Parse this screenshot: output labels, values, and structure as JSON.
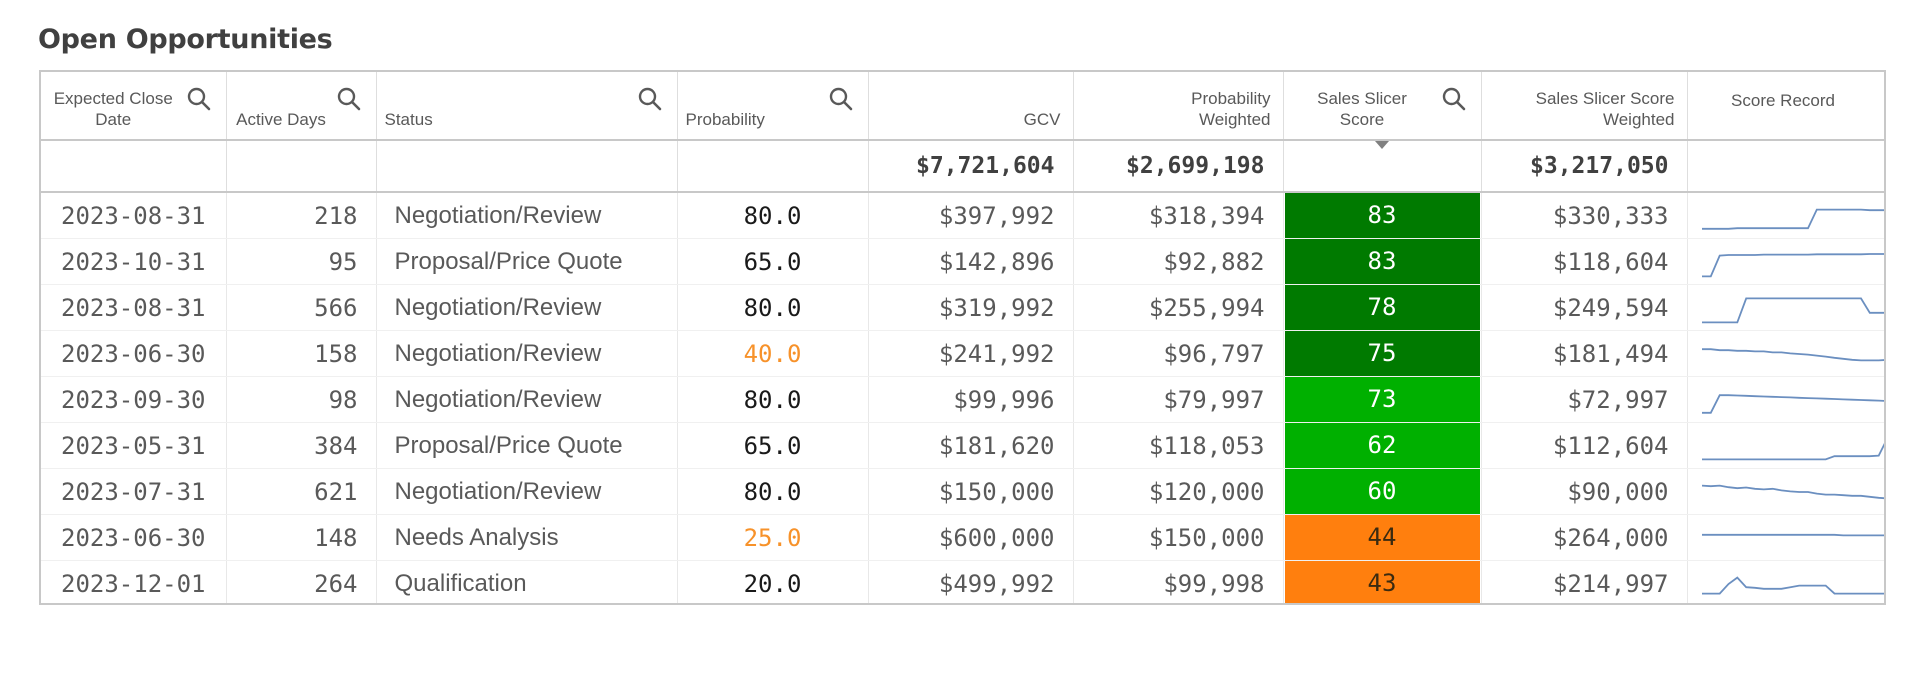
{
  "title": "Open Opportunities",
  "columns": [
    {
      "label": "Expected Close Date",
      "search": true
    },
    {
      "label": "Active Days",
      "search": true
    },
    {
      "label": "Status",
      "search": true
    },
    {
      "label": "Probability",
      "search": true
    },
    {
      "label": "GCV",
      "search": false
    },
    {
      "label": "Probability Weighted",
      "search": false
    },
    {
      "label": "Sales Slicer Score",
      "search": true
    },
    {
      "label": "Sales Slicer Score Weighted",
      "search": false
    },
    {
      "label": "Score Record",
      "search": false
    }
  ],
  "totals": {
    "gcv": "$7,721,604",
    "prob_weighted": "$2,699,198",
    "score_weighted": "$3,217,050"
  },
  "colors": {
    "score_dark_green": "#007a00",
    "score_green": "#00b000",
    "score_orange": "#ff7f0e",
    "probability_low": "#f7922a",
    "sparkline": "#6b8fc0"
  },
  "rows": [
    {
      "date": "2023-08-31",
      "days": "218",
      "status": "Negotiation/Review",
      "probability": "80.0",
      "prob_low": false,
      "gcv": "$397,992",
      "prob_weighted": "$318,394",
      "score": "83",
      "score_level": "dark",
      "score_weighted": "$330,333",
      "record": [
        0.9,
        0.9,
        0.9,
        0.9,
        0.88,
        0.88,
        0.88,
        0.88,
        0.88,
        0.88,
        0.88,
        0.88,
        0.88,
        0.3,
        0.3,
        0.3,
        0.3,
        0.3,
        0.3,
        0.32,
        0.32,
        0.32,
        0.32,
        0.32,
        0.32
      ]
    },
    {
      "date": "2023-10-31",
      "days": "95",
      "status": "Proposal/Price Quote",
      "probability": "65.0",
      "prob_low": false,
      "gcv": "$142,896",
      "prob_weighted": "$92,882",
      "score": "83",
      "score_level": "dark",
      "score_weighted": "$118,604",
      "record": [
        0.95,
        0.95,
        0.3,
        0.28,
        0.28,
        0.28,
        0.28,
        0.27,
        0.27,
        0.27,
        0.27,
        0.27,
        0.27,
        0.26,
        0.26,
        0.26,
        0.26,
        0.26,
        0.26,
        0.25,
        0.25,
        0.25,
        0.25,
        0.25,
        0.25
      ]
    },
    {
      "date": "2023-08-31",
      "days": "566",
      "status": "Negotiation/Review",
      "probability": "80.0",
      "prob_low": false,
      "gcv": "$319,992",
      "prob_weighted": "$255,994",
      "score": "78",
      "score_level": "dark",
      "score_weighted": "$249,594",
      "record": [
        0.95,
        0.95,
        0.95,
        0.95,
        0.95,
        0.2,
        0.2,
        0.2,
        0.2,
        0.2,
        0.2,
        0.2,
        0.2,
        0.2,
        0.2,
        0.2,
        0.2,
        0.2,
        0.2,
        0.65,
        0.65,
        0.65,
        0.65,
        0.65,
        0.95
      ]
    },
    {
      "date": "2023-06-30",
      "days": "158",
      "status": "Negotiation/Review",
      "probability": "40.0",
      "prob_low": true,
      "gcv": "$241,992",
      "prob_weighted": "$96,797",
      "score": "75",
      "score_level": "dark",
      "score_weighted": "$181,494",
      "record": [
        0.35,
        0.35,
        0.38,
        0.38,
        0.4,
        0.4,
        0.42,
        0.42,
        0.45,
        0.45,
        0.48,
        0.5,
        0.52,
        0.55,
        0.58,
        0.62,
        0.65,
        0.68,
        0.7,
        0.7,
        0.7,
        0.68,
        0.3,
        0.3,
        0.3
      ]
    },
    {
      "date": "2023-09-30",
      "days": "98",
      "status": "Negotiation/Review",
      "probability": "80.0",
      "prob_low": false,
      "gcv": "$99,996",
      "prob_weighted": "$79,997",
      "score": "73",
      "score_level": "green",
      "score_weighted": "$72,997",
      "record": [
        0.9,
        0.9,
        0.35,
        0.35,
        0.36,
        0.37,
        0.38,
        0.39,
        0.4,
        0.41,
        0.42,
        0.43,
        0.44,
        0.45,
        0.46,
        0.47,
        0.48,
        0.49,
        0.5,
        0.51,
        0.52,
        0.53,
        0.54,
        0.55,
        0.56
      ]
    },
    {
      "date": "2023-05-31",
      "days": "384",
      "status": "Proposal/Price Quote",
      "probability": "65.0",
      "prob_low": false,
      "gcv": "$181,620",
      "prob_weighted": "$118,053",
      "score": "62",
      "score_level": "green",
      "score_weighted": "$112,604",
      "record": [
        0.92,
        0.92,
        0.92,
        0.92,
        0.92,
        0.92,
        0.92,
        0.92,
        0.92,
        0.92,
        0.92,
        0.92,
        0.92,
        0.92,
        0.92,
        0.82,
        0.82,
        0.82,
        0.82,
        0.82,
        0.8,
        0.25,
        0.25,
        0.25,
        0.25
      ]
    },
    {
      "date": "2023-07-31",
      "days": "621",
      "status": "Negotiation/Review",
      "probability": "80.0",
      "prob_low": false,
      "gcv": "$150,000",
      "prob_weighted": "$120,000",
      "score": "60",
      "score_level": "green",
      "score_weighted": "$90,000",
      "record": [
        0.3,
        0.32,
        0.3,
        0.35,
        0.38,
        0.36,
        0.4,
        0.42,
        0.4,
        0.45,
        0.48,
        0.5,
        0.5,
        0.55,
        0.58,
        0.58,
        0.6,
        0.62,
        0.62,
        0.65,
        0.68,
        0.7,
        0.72,
        0.72,
        0.75
      ]
    },
    {
      "date": "2023-06-30",
      "days": "148",
      "status": "Needs Analysis",
      "probability": "25.0",
      "prob_low": true,
      "gcv": "$600,000",
      "prob_weighted": "$150,000",
      "score": "44",
      "score_level": "orange",
      "score_weighted": "$264,000",
      "record": [
        0.4,
        0.4,
        0.4,
        0.4,
        0.4,
        0.4,
        0.4,
        0.4,
        0.4,
        0.4,
        0.4,
        0.4,
        0.4,
        0.4,
        0.4,
        0.4,
        0.42,
        0.42,
        0.42,
        0.42,
        0.42,
        0.42,
        0.42,
        0.42,
        0.42
      ]
    },
    {
      "date": "2023-12-01",
      "days": "264",
      "status": "Qualification",
      "probability": "20.0",
      "prob_low": false,
      "gcv": "$499,992",
      "prob_weighted": "$99,998",
      "score": "43",
      "score_level": "orange",
      "score_weighted": "$214,997",
      "record": [
        0.8,
        0.8,
        0.8,
        0.5,
        0.3,
        0.6,
        0.62,
        0.65,
        0.65,
        0.65,
        0.6,
        0.55,
        0.55,
        0.55,
        0.55,
        0.8,
        0.8,
        0.8,
        0.8,
        0.8,
        0.8,
        0.8,
        0.8,
        0.8,
        0.1
      ]
    }
  ]
}
